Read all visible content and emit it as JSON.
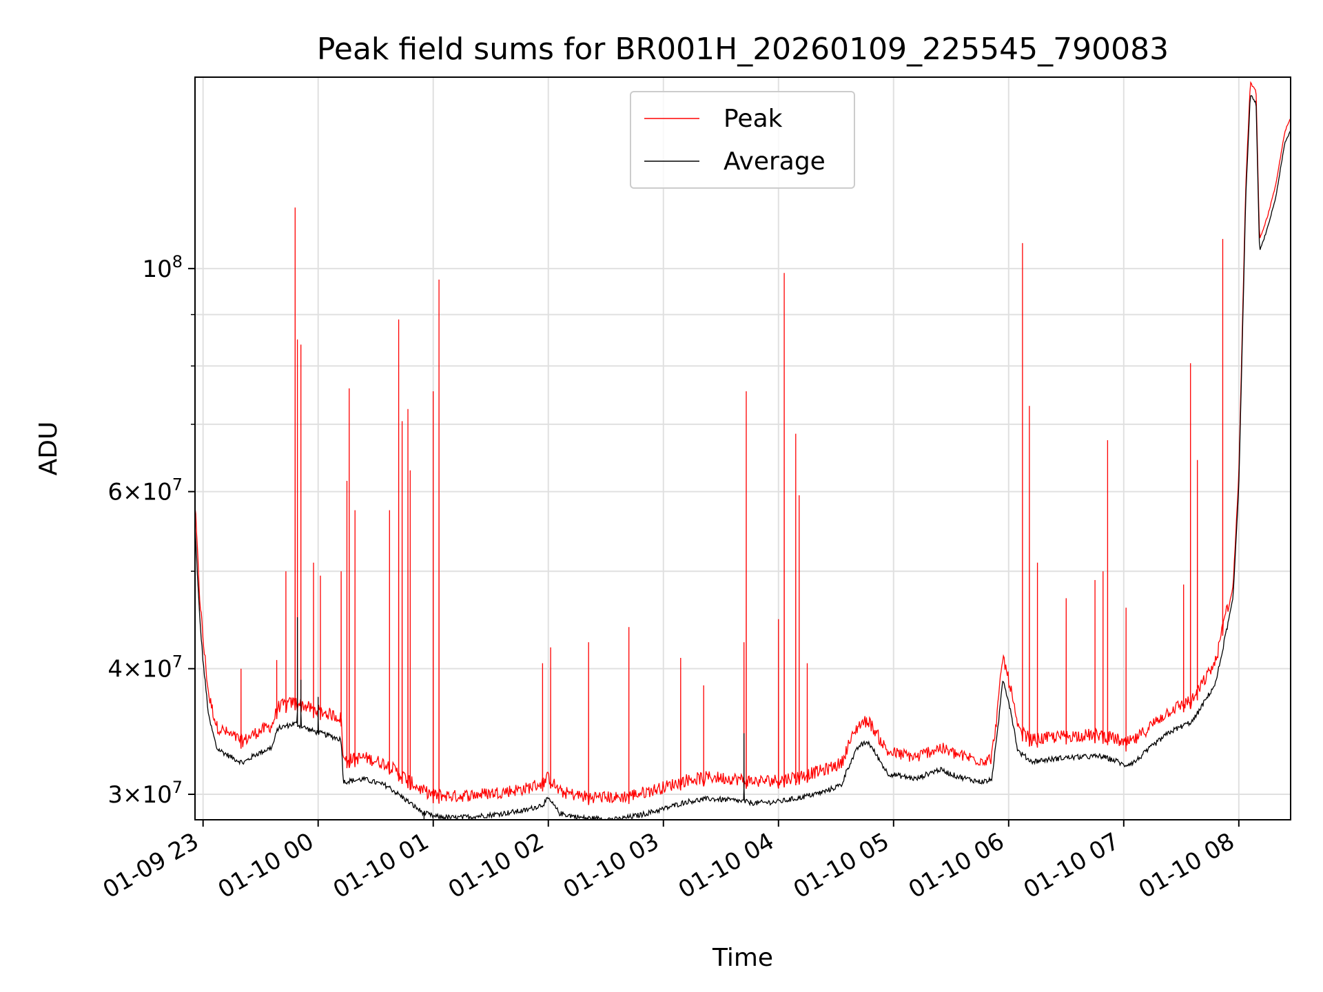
{
  "chart_data": {
    "type": "line",
    "title": "Peak field sums for BR001H_20260109_225545_790083",
    "xlabel": "Time",
    "ylabel": "ADU",
    "yscale": "log",
    "ylim": [
      28300000,
      155000000
    ],
    "xlim_hours": [
      -0.07,
      9.45
    ],
    "grid": true,
    "legend_position": "upper center",
    "x_ticks": [
      {
        "hour": 0,
        "label": "01-09 23"
      },
      {
        "hour": 1,
        "label": "01-10 00"
      },
      {
        "hour": 2,
        "label": "01-10 01"
      },
      {
        "hour": 3,
        "label": "01-10 02"
      },
      {
        "hour": 4,
        "label": "01-10 03"
      },
      {
        "hour": 5,
        "label": "01-10 04"
      },
      {
        "hour": 6,
        "label": "01-10 05"
      },
      {
        "hour": 7,
        "label": "01-10 06"
      },
      {
        "hour": 8,
        "label": "01-10 07"
      },
      {
        "hour": 9,
        "label": "01-10 08"
      }
    ],
    "y_ticks": [
      {
        "value": 30000000,
        "mantissa": "3",
        "exponent": "7"
      },
      {
        "value": 40000000,
        "mantissa": "4",
        "exponent": "7"
      },
      {
        "value": 60000000,
        "mantissa": "6",
        "exponent": "7"
      },
      {
        "value": 100000000,
        "mantissa": "",
        "exponent": "8"
      }
    ],
    "y_minor_ticks": [
      50000000,
      70000000,
      80000000,
      90000000
    ],
    "tick_base": "10",
    "times_sign": "×",
    "series": [
      {
        "name": "Peak",
        "color": "#ff0000",
        "role": "peak"
      },
      {
        "name": "Average",
        "color": "#000000",
        "role": "average"
      }
    ],
    "baseline": [
      [
        -0.07,
        56500000
      ],
      [
        -0.03,
        46000000
      ],
      [
        0.0,
        41500000
      ],
      [
        0.05,
        36500000
      ],
      [
        0.12,
        34000000
      ],
      [
        0.25,
        33300000
      ],
      [
        0.35,
        32900000
      ],
      [
        0.45,
        33500000
      ],
      [
        0.6,
        34100000
      ],
      [
        0.65,
        35600000
      ],
      [
        0.8,
        36000000
      ],
      [
        0.95,
        35400000
      ],
      [
        1.1,
        35000000
      ],
      [
        1.2,
        34700000
      ],
      [
        1.22,
        31500000
      ],
      [
        1.4,
        31700000
      ],
      [
        1.6,
        31200000
      ],
      [
        1.75,
        30300000
      ],
      [
        1.9,
        29400000
      ],
      [
        2.0,
        29100000
      ],
      [
        2.2,
        29000000
      ],
      [
        2.5,
        29200000
      ],
      [
        2.8,
        29500000
      ],
      [
        2.95,
        29900000
      ],
      [
        3.0,
        30300000
      ],
      [
        3.05,
        29800000
      ],
      [
        3.1,
        29300000
      ],
      [
        3.3,
        29000000
      ],
      [
        3.6,
        28900000
      ],
      [
        3.8,
        29200000
      ],
      [
        4.0,
        29600000
      ],
      [
        4.2,
        30100000
      ],
      [
        4.4,
        30300000
      ],
      [
        4.6,
        30200000
      ],
      [
        4.8,
        30000000
      ],
      [
        5.0,
        30100000
      ],
      [
        5.2,
        30400000
      ],
      [
        5.4,
        30800000
      ],
      [
        5.55,
        31300000
      ],
      [
        5.6,
        32500000
      ],
      [
        5.7,
        34200000
      ],
      [
        5.78,
        34500000
      ],
      [
        5.85,
        33500000
      ],
      [
        5.95,
        32100000
      ],
      [
        6.2,
        31700000
      ],
      [
        6.3,
        32100000
      ],
      [
        6.4,
        32400000
      ],
      [
        6.55,
        31900000
      ],
      [
        6.75,
        31500000
      ],
      [
        6.85,
        31600000
      ],
      [
        6.9,
        35000000
      ],
      [
        6.95,
        40000000
      ],
      [
        7.02,
        37000000
      ],
      [
        7.08,
        33800000
      ],
      [
        7.2,
        33000000
      ],
      [
        7.5,
        33300000
      ],
      [
        7.8,
        33400000
      ],
      [
        7.95,
        33000000
      ],
      [
        8.0,
        32700000
      ],
      [
        8.1,
        33000000
      ],
      [
        8.25,
        34200000
      ],
      [
        8.4,
        35300000
      ],
      [
        8.6,
        36200000
      ],
      [
        8.8,
        39500000
      ],
      [
        8.95,
        48000000
      ],
      [
        9.0,
        62000000
      ],
      [
        9.06,
        120000000
      ],
      [
        9.1,
        152000000
      ],
      [
        9.15,
        149000000
      ],
      [
        9.18,
        106000000
      ],
      [
        9.25,
        112000000
      ],
      [
        9.32,
        120000000
      ],
      [
        9.4,
        136000000
      ],
      [
        9.45,
        140000000
      ]
    ],
    "peak_spikes": [
      [
        0.33,
        40000000
      ],
      [
        0.64,
        40800000
      ],
      [
        0.72,
        50000000
      ],
      [
        0.8,
        115000000
      ],
      [
        0.82,
        85000000
      ],
      [
        0.85,
        84000000
      ],
      [
        0.96,
        51000000
      ],
      [
        1.02,
        49500000
      ],
      [
        1.2,
        50000000
      ],
      [
        1.25,
        61500000
      ],
      [
        1.27,
        76000000
      ],
      [
        1.32,
        57500000
      ],
      [
        1.62,
        57500000
      ],
      [
        1.7,
        89000000
      ],
      [
        1.73,
        70500000
      ],
      [
        1.78,
        72500000
      ],
      [
        1.8,
        63000000
      ],
      [
        2.0,
        75500000
      ],
      [
        2.05,
        97500000
      ],
      [
        2.95,
        40500000
      ],
      [
        3.02,
        42000000
      ],
      [
        3.35,
        42500000
      ],
      [
        3.7,
        44000000
      ],
      [
        4.15,
        41000000
      ],
      [
        4.35,
        38500000
      ],
      [
        4.7,
        42500000
      ],
      [
        4.72,
        75500000
      ],
      [
        5.0,
        44800000
      ],
      [
        5.05,
        99000000
      ],
      [
        5.15,
        68500000
      ],
      [
        5.18,
        59500000
      ],
      [
        5.25,
        40500000
      ],
      [
        7.12,
        106000000
      ],
      [
        7.18,
        73000000
      ],
      [
        7.25,
        51000000
      ],
      [
        7.5,
        47000000
      ],
      [
        7.75,
        49000000
      ],
      [
        7.82,
        50000000
      ],
      [
        7.86,
        67500000
      ],
      [
        8.02,
        46000000
      ],
      [
        8.52,
        48500000
      ],
      [
        8.58,
        80500000
      ],
      [
        8.64,
        64500000
      ],
      [
        8.86,
        107000000
      ]
    ],
    "average_spikes": [
      [
        0.82,
        45000000
      ],
      [
        0.85,
        39000000
      ],
      [
        1.0,
        37500000
      ],
      [
        4.7,
        34500000
      ]
    ],
    "average_dip": [
      1.92,
      28200000
    ]
  }
}
